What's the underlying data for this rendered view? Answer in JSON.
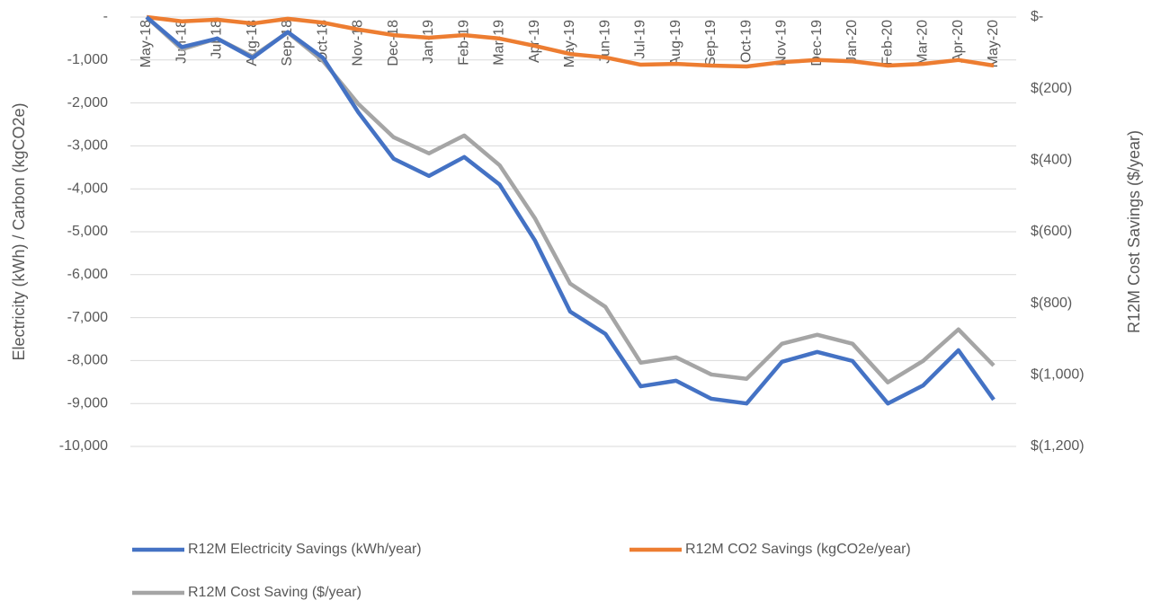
{
  "chart_data": {
    "type": "line",
    "categories": [
      "May-18",
      "Jun-18",
      "Jul-18",
      "Aug-18",
      "Sep-18",
      "Oct-18",
      "Nov-18",
      "Dec-18",
      "Jan-19",
      "Feb-19",
      "Mar-19",
      "Apr-19",
      "May-19",
      "Jun-19",
      "Jul-19",
      "Aug-19",
      "Sep-19",
      "Oct-19",
      "Nov-19",
      "Dec-19",
      "Jan-20",
      "Feb-20",
      "Mar-20",
      "Apr-20",
      "May-20"
    ],
    "series": [
      {
        "name": "R12M Electricity Savings (kWh/year)",
        "color": "#4472c4",
        "values": [
          0,
          -700,
          -500,
          -950,
          -350,
          -950,
          -2220,
          -3300,
          -3700,
          -3260,
          -3900,
          -5200,
          -6860,
          -7380,
          -8600,
          -8470,
          -8890,
          -9000,
          -8030,
          -7800,
          -8010,
          -9000,
          -8580,
          -7760,
          -8910
        ]
      },
      {
        "name": "R12M CO2 Savings (kgCO2e/year)",
        "color": "#ed7d31",
        "values": [
          0,
          -100,
          -60,
          -150,
          -40,
          -130,
          -290,
          -420,
          -480,
          -420,
          -500,
          -670,
          -860,
          -940,
          -1110,
          -1090,
          -1130,
          -1150,
          -1050,
          -1000,
          -1030,
          -1130,
          -1090,
          -1000,
          -1130
        ]
      },
      {
        "name": "R12M Cost Saving ($/year)",
        "color": "#a5a5a5",
        "axis": "y2",
        "values": [
          0,
          -90,
          -60,
          -110,
          -43,
          -123,
          -243,
          -336,
          -381,
          -331,
          -414,
          -562,
          -745,
          -810,
          -966,
          -951,
          -999,
          -1011,
          -913,
          -888,
          -913,
          -1021,
          -961,
          -873,
          -974
        ]
      }
    ],
    "y_label": "Electricity (kWh) / Carbon (kgCO2e)",
    "y2_label": "R12M Cost Savings ($/year)",
    "ylim": [
      -10000,
      0
    ],
    "yticks": [
      {
        "value": 0,
        "label": "-"
      },
      {
        "value": -1000,
        "label": "-1,000"
      },
      {
        "value": -2000,
        "label": "-2,000"
      },
      {
        "value": -3000,
        "label": "-3,000"
      },
      {
        "value": -4000,
        "label": "-4,000"
      },
      {
        "value": -5000,
        "label": "-5,000"
      },
      {
        "value": -6000,
        "label": "-6,000"
      },
      {
        "value": -7000,
        "label": "-7,000"
      },
      {
        "value": -8000,
        "label": "-8,000"
      },
      {
        "value": -9000,
        "label": "-9,000"
      },
      {
        "value": -10000,
        "label": "-10,000"
      }
    ],
    "y2lim": [
      -1200,
      0
    ],
    "y2ticks": [
      {
        "value": 0,
        "label": "$-"
      },
      {
        "value": -200,
        "label": "$(200)"
      },
      {
        "value": -400,
        "label": "$(400)"
      },
      {
        "value": -600,
        "label": "$(600)"
      },
      {
        "value": -800,
        "label": "$(800)"
      },
      {
        "value": -1000,
        "label": "$(1,000)"
      },
      {
        "value": -1200,
        "label": "$(1,200)"
      }
    ],
    "grid": true
  }
}
